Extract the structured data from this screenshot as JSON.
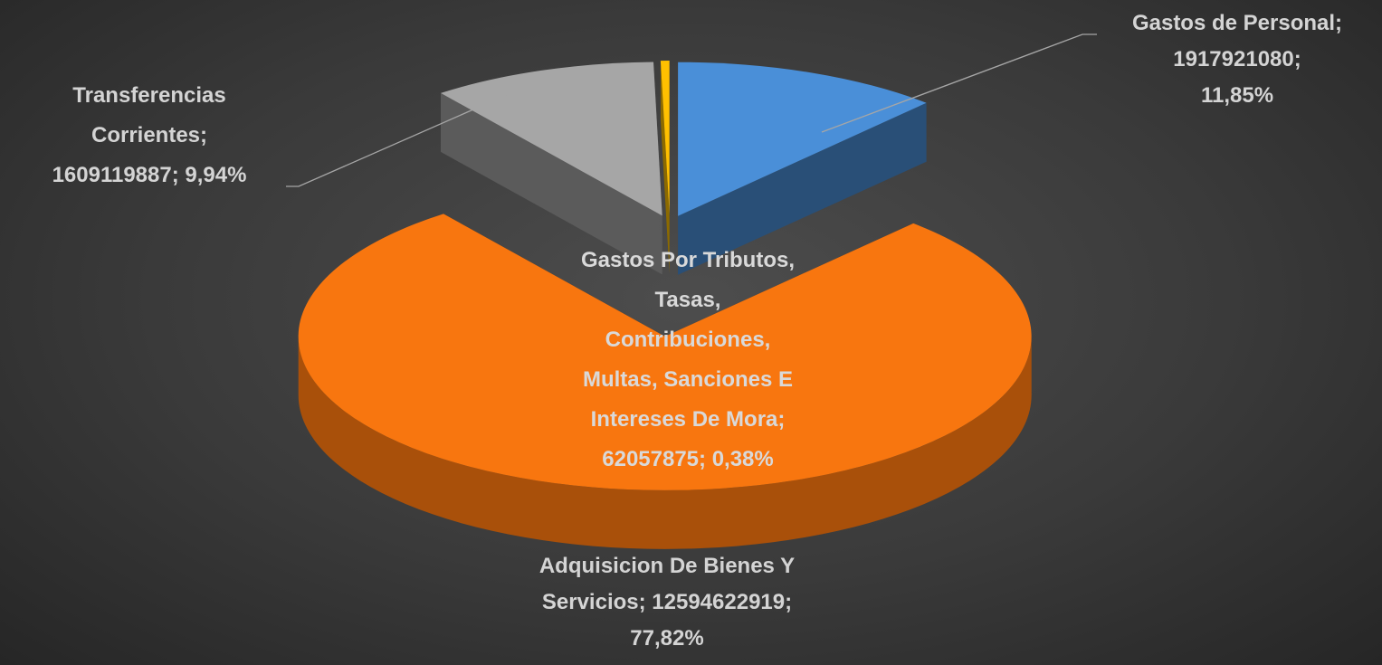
{
  "chart_data": {
    "type": "pie",
    "values": [
      1917921080,
      12594622919,
      1609119887,
      62057875
    ],
    "value_labels": [
      "Gastos de Personal;\n1917921080;\n11,85%",
      "Adquisicion De Bienes Y\nServicios; 12594622919;\n77,82%",
      "Transferencias\nCorrientes;\n1609119887; 9,94%",
      "Gastos Por Tributos,\nTasas,\nContribuciones,\nMultas, Sanciones E\nIntereses De Mora;\n62057875; 0,38%"
    ],
    "colors": [
      "#4a8fd8",
      "#f8760f",
      "#a6a6a6",
      "#ffc000"
    ]
  }
}
